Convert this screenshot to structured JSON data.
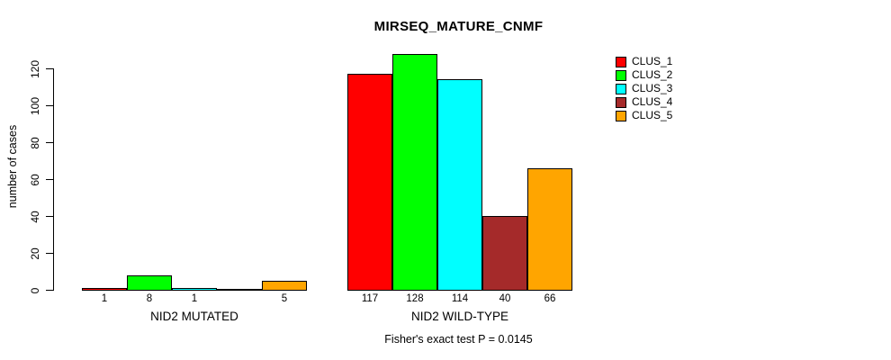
{
  "figure": {
    "title": "MIRSEQ_MATURE_CNMF",
    "y_axis_label": "number of cases",
    "footer_note": "Fisher's exact test P = 0.0145"
  },
  "chart_data": {
    "type": "bar",
    "title": "MIRSEQ_MATURE_CNMF",
    "xlabel": "",
    "ylabel": "number of cases",
    "ylim": [
      0,
      130
    ],
    "yticks": [
      0,
      20,
      40,
      60,
      80,
      100,
      120
    ],
    "grid": false,
    "legend_position": "top-right",
    "categories": [
      "NID2 MUTATED",
      "NID2 WILD-TYPE"
    ],
    "series": [
      {
        "name": "CLUS_1",
        "color": "#ff0000",
        "values": [
          1,
          117
        ]
      },
      {
        "name": "CLUS_2",
        "color": "#00ff00",
        "values": [
          8,
          128
        ]
      },
      {
        "name": "CLUS_3",
        "color": "#00ffff",
        "values": [
          1,
          114
        ]
      },
      {
        "name": "CLUS_4",
        "color": "#a52a2a",
        "values": [
          0,
          40
        ]
      },
      {
        "name": "CLUS_5",
        "color": "#ffa500",
        "values": [
          5,
          66
        ]
      }
    ],
    "value_labels": "shown under each bar, hidden when value is 0",
    "annotation": "Fisher's exact test P = 0.0145"
  }
}
